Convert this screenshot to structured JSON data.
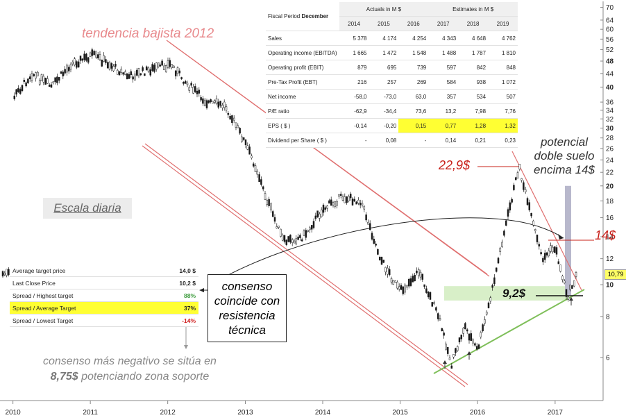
{
  "chart_data": {
    "type": "candlestick",
    "scale": "log",
    "grid": false,
    "x_tick_labels": [
      "2010",
      "2011",
      "2012",
      "2013",
      "2014",
      "2015",
      "2016",
      "2017"
    ],
    "y_tick_labels": [
      "6",
      "8",
      "10",
      "12",
      "14",
      "16",
      "18",
      "20",
      "22",
      "24",
      "26",
      "28",
      "30",
      "32",
      "34",
      "36",
      "40",
      "44",
      "48",
      "52",
      "56",
      "60",
      "64",
      "70"
    ],
    "ylim": [
      5,
      72
    ],
    "last_price_label": "10,79",
    "price_path": [
      [
        "2010-01-01",
        37
      ],
      [
        "2010-04-01",
        44
      ],
      [
        "2010-07-01",
        40
      ],
      [
        "2010-10-01",
        47
      ],
      [
        "2011-01-15",
        50
      ],
      [
        "2011-04-01",
        47
      ],
      [
        "2011-07-01",
        43
      ],
      [
        "2011-10-01",
        45
      ],
      [
        "2012-01-15",
        47
      ],
      [
        "2012-04-01",
        41
      ],
      [
        "2012-07-01",
        36
      ],
      [
        "2012-10-01",
        35
      ],
      [
        "2013-01-01",
        27
      ],
      [
        "2013-03-01",
        22
      ],
      [
        "2013-04-01",
        19
      ],
      [
        "2013-07-01",
        13.5
      ],
      [
        "2013-10-01",
        14
      ],
      [
        "2014-01-01",
        17
      ],
      [
        "2014-04-01",
        18.5
      ],
      [
        "2014-07-01",
        18
      ],
      [
        "2014-10-01",
        12
      ],
      [
        "2015-01-01",
        9.5
      ],
      [
        "2015-04-01",
        11
      ],
      [
        "2015-07-01",
        8
      ],
      [
        "2015-09-01",
        5.7
      ],
      [
        "2015-11-01",
        7.5
      ],
      [
        "2016-01-01",
        6.3
      ],
      [
        "2016-03-01",
        9
      ],
      [
        "2016-05-01",
        14
      ],
      [
        "2016-07-15",
        22.9
      ],
      [
        "2016-09-01",
        17
      ],
      [
        "2016-11-01",
        12
      ],
      [
        "2017-01-01",
        13
      ],
      [
        "2017-03-01",
        9.2
      ],
      [
        "2017-04-15",
        10.79
      ]
    ],
    "annotations": {
      "trend": "tendencia bajista 2012",
      "scale_note": "Escala diaria",
      "peak": "22,9$",
      "double_bottom": "potencial doble suelo encima 14$",
      "level_14": "14$",
      "level_92": "9,2$",
      "consensus_box": "consenso coincide con resistencia técnica",
      "bottom_note_1": "consenso más negativo se sitúa en",
      "bottom_note_bold": "8,75$",
      "bottom_note_2": " potenciando zona soporte"
    }
  },
  "financials": {
    "period_label": "Fiscal Period",
    "period_bold": "December",
    "actuals_header": "Actuals in M $",
    "estimates_header": "Estimates in M $",
    "years": [
      "2014",
      "2015",
      "2016",
      "2017",
      "2018",
      "2019"
    ],
    "rows": [
      {
        "label": "Sales",
        "values": [
          "5 378",
          "4 174",
          "4 254",
          "4 343",
          "4 648",
          "4 762"
        ]
      },
      {
        "label": "Operating income (EBITDA)",
        "values": [
          "1 665",
          "1 472",
          "1 548",
          "1 488",
          "1 787",
          "1 810"
        ]
      },
      {
        "label": "Operating profit (EBIT)",
        "values": [
          "879",
          "695",
          "739",
          "597",
          "842",
          "848"
        ]
      },
      {
        "label": "Pre-Tax Profit (EBT)",
        "values": [
          "216",
          "257",
          "269",
          "584",
          "938",
          "1 072"
        ]
      },
      {
        "label": "Net income",
        "values": [
          "-58,0",
          "-73,0",
          "63,0",
          "357",
          "534",
          "507"
        ]
      },
      {
        "label": "P/E ratio",
        "values": [
          "-62,9",
          "-34,4",
          "73,6",
          "13,2",
          "7,98",
          "7,76"
        ]
      },
      {
        "label": "EPS ( $ )",
        "values": [
          "-0,14",
          "-0,20",
          "0,15",
          "0,77",
          "1,28",
          "1,32"
        ]
      },
      {
        "label": "Dividend per Share ( $ )",
        "values": [
          "-",
          "0,08",
          "-",
          "0,14",
          "0,21",
          "0,23"
        ]
      }
    ]
  },
  "targets": {
    "rows": [
      {
        "label": "Average target price",
        "value": "14,0 $"
      },
      {
        "label": "Last Close Price",
        "value": "10,2 $"
      },
      {
        "label": "Spread / Highest target",
        "value": "88%"
      },
      {
        "label": "Spread / Average Target",
        "value": "37%"
      },
      {
        "label": "Spread / Lowest Target",
        "value": "-14%"
      }
    ]
  },
  "colors": {
    "bull": "#ffffff",
    "bear": "#1a1a1a",
    "channel": "#e07070",
    "support": "#7fbf5a",
    "zone": "#d8efc8",
    "bar": "#b8b8cc"
  }
}
